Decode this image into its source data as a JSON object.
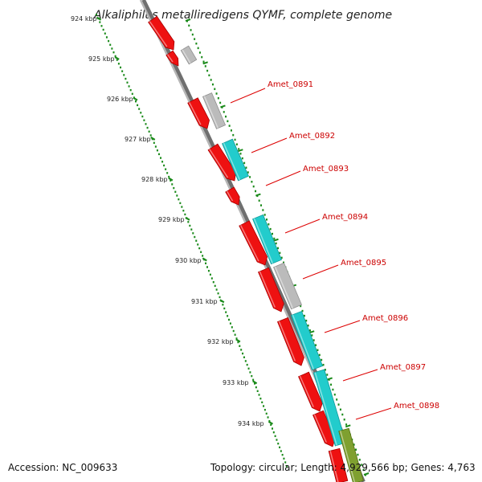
{
  "title": "Alkaliphilus metalliredigens QYMF, complete genome",
  "footer": {
    "accession": "Accession: NC_009633",
    "summary": "Topology: circular; Length: 4,929,566 bp; Genes: 4,763"
  },
  "ruler": {
    "labels": [
      "924 kbp",
      "925 kbp",
      "926 kbp",
      "927 kbp",
      "928 kbp",
      "929 kbp",
      "930 kbp",
      "931 kbp",
      "932 kbp",
      "933 kbp",
      "934 kbp"
    ]
  },
  "gene_labels": [
    "Amet_0891",
    "Amet_0892",
    "Amet_0893",
    "Amet_0894",
    "Amet_0895",
    "Amet_0896",
    "Amet_0897",
    "Amet_0898"
  ],
  "colors": {
    "cds": "#ee1111",
    "cds_dark": "#a80000",
    "other_gene": "#22cccc",
    "other_gene_dark": "#11999a",
    "unknown": "#bbbbbb",
    "unknown_dark": "#8f8f8f",
    "rna": "#7fa030",
    "rna_dark": "#557010",
    "backbone": "#8c8c8c",
    "tick": "#1a8a1a",
    "leader": "#dd0000"
  }
}
